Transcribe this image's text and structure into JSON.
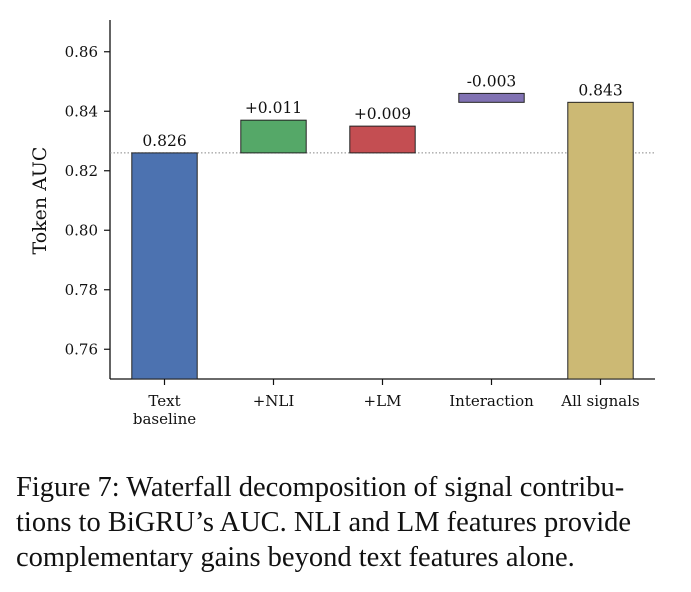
{
  "chart_data": {
    "type": "bar",
    "subtype": "waterfall",
    "ylabel": "Token AUC",
    "xlabel": "",
    "ylim": [
      0.75,
      0.87
    ],
    "yticks": [
      0.76,
      0.78,
      0.8,
      0.82,
      0.84,
      0.86
    ],
    "ytick_labels": [
      "0.76",
      "0.78",
      "0.80",
      "0.82",
      "0.84",
      "0.86"
    ],
    "baseline_reference": 0.826,
    "reference_line": "dotted",
    "grid": false,
    "legend": false,
    "categories": [
      [
        "Text",
        "baseline"
      ],
      [
        "+NLI"
      ],
      [
        "+LM"
      ],
      [
        "Interaction"
      ],
      [
        "All signals"
      ]
    ],
    "bars": [
      {
        "start": 0.75,
        "end": 0.826,
        "label": "0.826",
        "color": "#4c72b0"
      },
      {
        "start": 0.826,
        "end": 0.837,
        "label": "+0.011",
        "color": "#55a868"
      },
      {
        "start": 0.826,
        "end": 0.835,
        "label": "+0.009",
        "color": "#c44e52"
      },
      {
        "start": 0.846,
        "end": 0.843,
        "label": "-0.003",
        "color": "#8172b3"
      },
      {
        "start": 0.75,
        "end": 0.843,
        "label": "0.843",
        "color": "#ccb974"
      }
    ]
  },
  "caption": {
    "text": "Figure 7: Waterfall decomposition of signal contributions to BiGRU’s AUC. NLI and LM features provide complementary gains beyond text features alone.",
    "lines": [
      "Figure 7:  Waterfall decomposition of signal contribu-",
      "tions to BiGRU’s AUC. NLI and LM features provide",
      "complementary gains beyond text features alone."
    ]
  }
}
